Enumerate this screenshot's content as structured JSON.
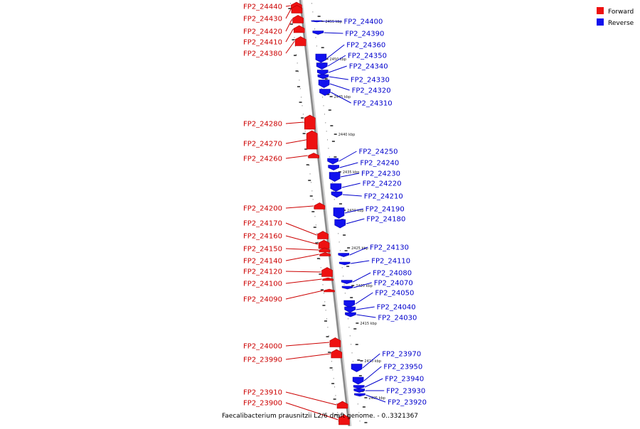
{
  "legend": {
    "forward": {
      "label": "Forward",
      "color": "#ee1111"
    },
    "reverse": {
      "label": "Reverse",
      "color": "#1111ee"
    }
  },
  "caption": "Faecalibacterium prausnitzii L2/6 draft genome. - 0..3321367",
  "colors": {
    "axis": "#8a8a8a",
    "tick": "#111111",
    "forward_label": "#cc0000",
    "reverse_label": "#0000cc"
  },
  "kbp_marks": [
    "2455 kbp",
    "2450 kbp",
    "2445 kbp",
    "2440 kbp",
    "2435 kbp",
    "2430 kbp",
    "2425 kbp",
    "2420 kbp",
    "2415 kbp",
    "2410 kbp",
    "2405 kbp"
  ],
  "forward_genes": [
    "FP2_24440",
    "FP2_24430",
    "FP2_24420",
    "FP2_24410",
    "FP2_24380",
    "FP2_24280",
    "FP2_24270",
    "FP2_24260",
    "FP2_24200",
    "FP2_24170",
    "FP2_24160",
    "FP2_24150",
    "FP2_24140",
    "FP2_24120",
    "FP2_24100",
    "FP2_24090",
    "FP2_24000",
    "FP2_23990",
    "FP2_23910",
    "FP2_23900"
  ],
  "reverse_genes": [
    "FP2_24400",
    "FP2_24390",
    "FP2_24360",
    "FP2_24350",
    "FP2_24340",
    "FP2_24330",
    "FP2_24320",
    "FP2_24310",
    "FP2_24250",
    "FP2_24240",
    "FP2_24230",
    "FP2_24220",
    "FP2_24210",
    "FP2_24190",
    "FP2_24180",
    "FP2_24130",
    "FP2_24110",
    "FP2_24080",
    "FP2_24070",
    "FP2_24050",
    "FP2_24040",
    "FP2_24030",
    "FP2_23970",
    "FP2_23950",
    "FP2_23940",
    "FP2_23930",
    "FP2_23920"
  ]
}
